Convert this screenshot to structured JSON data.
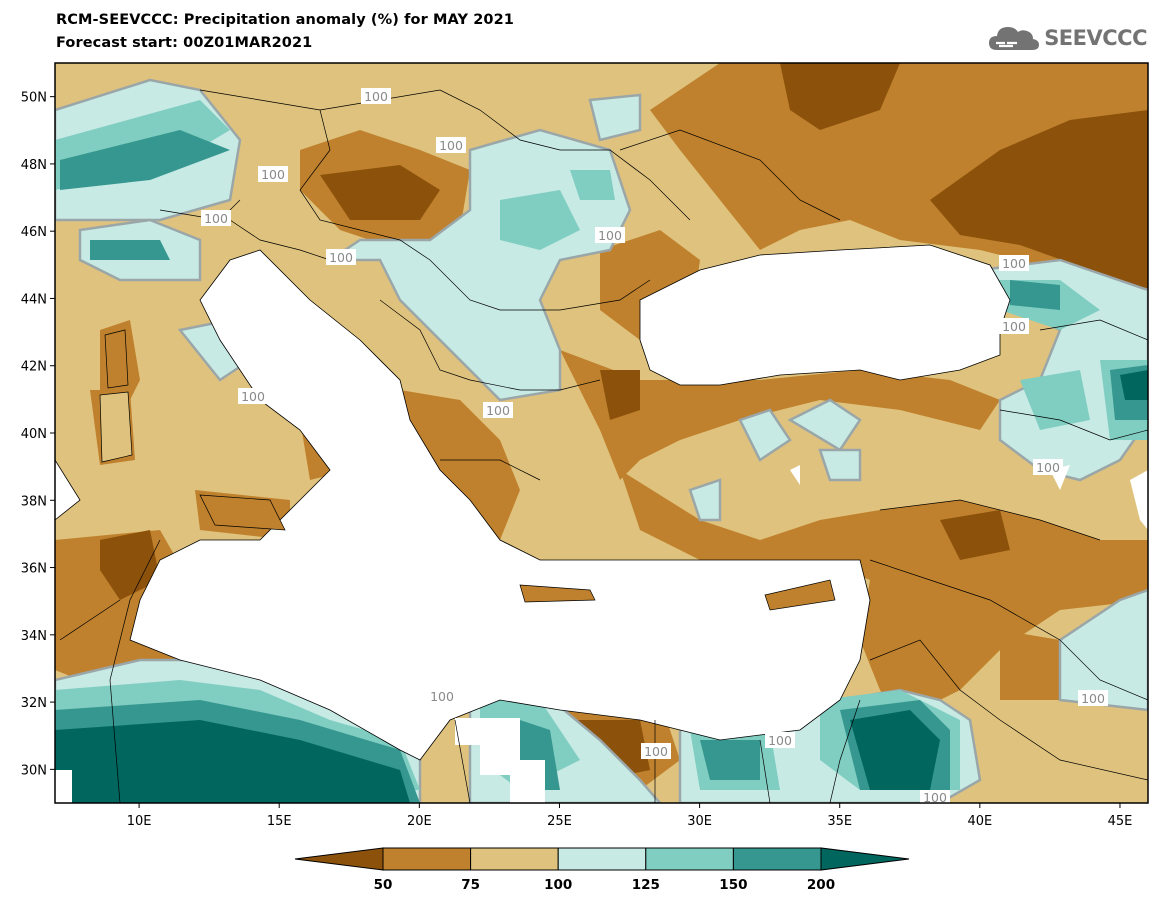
{
  "header": {
    "title_line1": "RCM-SEEVCCC: Precipitation anomaly (%) for MAY 2021",
    "title_line2": "Forecast start: 00Z01MAR2021",
    "logo_text": "SEEVCCC"
  },
  "map": {
    "lon_range": [
      7,
      46
    ],
    "lat_range": [
      29,
      51
    ],
    "lat_ticks": [
      "50N",
      "48N",
      "46N",
      "44N",
      "42N",
      "40N",
      "38N",
      "36N",
      "34N",
      "32N",
      "30N"
    ],
    "lon_ticks": [
      "10E",
      "15E",
      "20E",
      "25E",
      "30E",
      "35E",
      "40E",
      "45E"
    ],
    "contour_label": "100"
  },
  "legend": {
    "labels": [
      "50",
      "75",
      "100",
      "125",
      "150",
      "200"
    ],
    "colors": [
      "#8c510a",
      "#bf812d",
      "#dfc27d",
      "#c7eae5",
      "#80cdc1",
      "#35978f",
      "#01665e"
    ]
  }
}
